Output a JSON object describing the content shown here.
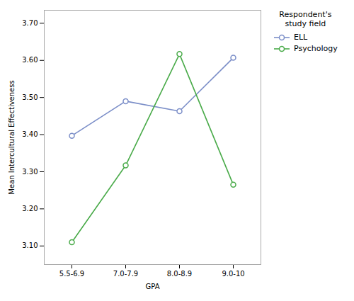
{
  "chart_data": {
    "type": "line",
    "categories": [
      "5.5-6.9",
      "7.0-7.9",
      "8.0-8.9",
      "9.0-10"
    ],
    "series": [
      {
        "name": "ELL",
        "color": "#7b8ec8",
        "values": [
          3.397,
          3.49,
          3.463,
          3.607
        ]
      },
      {
        "name": "Psychology",
        "color": "#4aab4a",
        "values": [
          3.11,
          3.317,
          3.617,
          3.265
        ]
      }
    ],
    "xlabel": "GPA",
    "ylabel": "Mean Intercultural Effectiveness",
    "legend_title": "Respondent's\nstudy field",
    "legend": "right",
    "marker": "circle",
    "grid": false,
    "ylim": [
      3.05,
      3.735
    ],
    "yticks": [
      {
        "value": 3.1,
        "label": "3.10"
      },
      {
        "value": 3.2,
        "label": "3.20"
      },
      {
        "value": 3.3,
        "label": "3.30"
      },
      {
        "value": 3.4,
        "label": "3.40"
      },
      {
        "value": 3.5,
        "label": "3.50"
      },
      {
        "value": 3.6,
        "label": "3.60"
      },
      {
        "value": 3.7,
        "label": "3.70"
      }
    ]
  }
}
